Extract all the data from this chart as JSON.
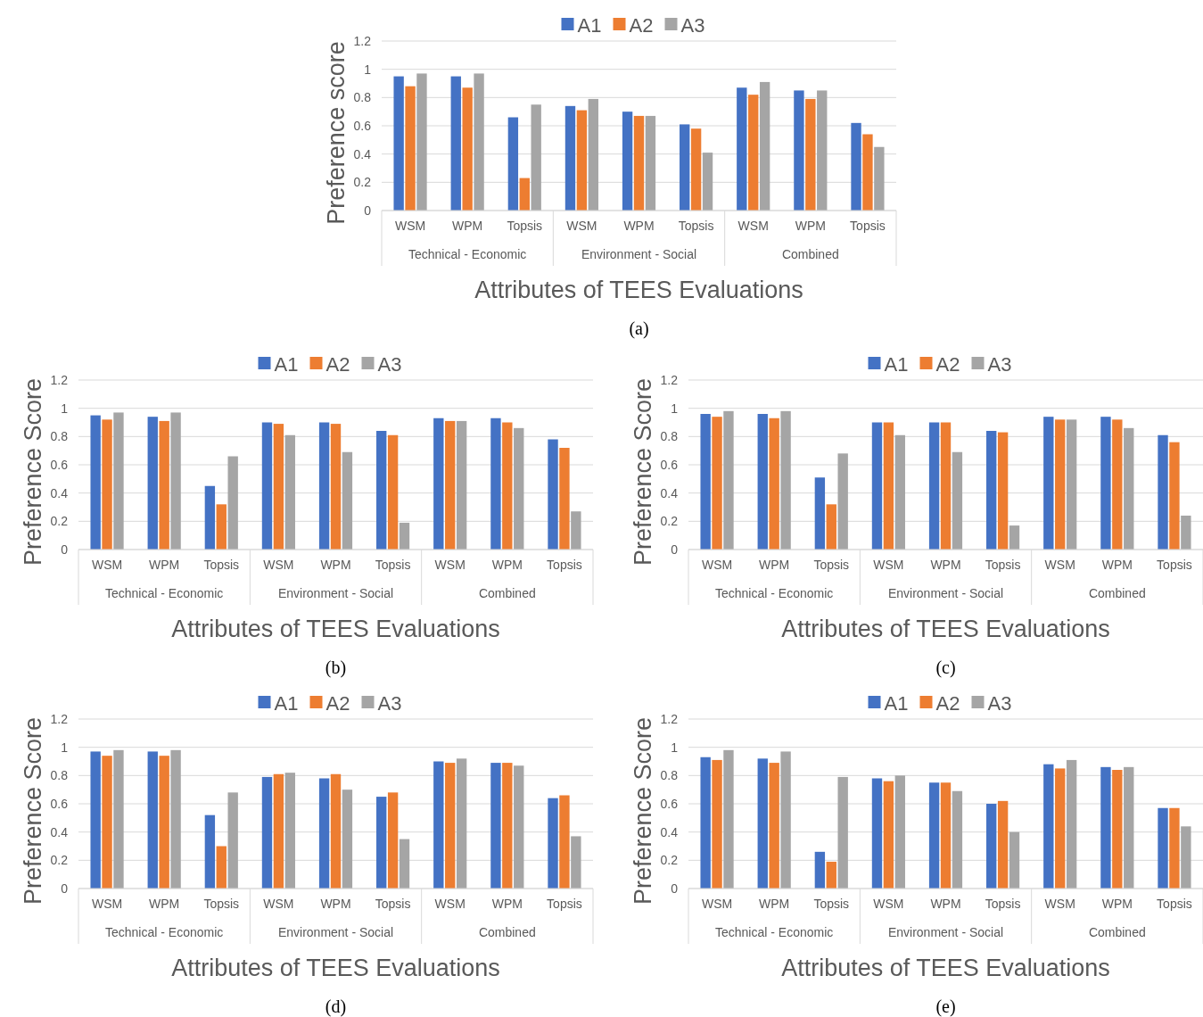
{
  "chart_data": [
    {
      "type": "bar",
      "ylabel": "Preference score",
      "xlabel": "Attributes of TEES Evaluations",
      "subtitle": "(a)",
      "categories": [
        "WSM",
        "WPM",
        "Topsis",
        "WSM",
        "WPM",
        "Topsis",
        "WSM",
        "WPM",
        "Topsis"
      ],
      "annotations": [
        "Technical - Economic",
        "Environment - Social",
        "Combined"
      ],
      "ylim": [
        0,
        1.2
      ],
      "yticks": [
        0,
        0.2,
        0.4,
        0.6,
        0.8,
        1,
        1.2
      ],
      "grid": "y",
      "legend": "top",
      "series": [
        {
          "name": "A1",
          "color": "#4472c4",
          "values": [
            0.95,
            0.95,
            0.66,
            0.74,
            0.7,
            0.61,
            0.87,
            0.85,
            0.62
          ]
        },
        {
          "name": "A2",
          "color": "#ed7d31",
          "values": [
            0.88,
            0.87,
            0.23,
            0.71,
            0.67,
            0.58,
            0.82,
            0.79,
            0.54
          ]
        },
        {
          "name": "A3",
          "color": "#a5a5a5",
          "values": [
            0.97,
            0.97,
            0.75,
            0.79,
            0.67,
            0.41,
            0.91,
            0.85,
            0.45
          ]
        }
      ]
    },
    {
      "type": "bar",
      "ylabel": "Preference Score",
      "xlabel": "Attributes of TEES Evaluations",
      "subtitle": "(b)",
      "categories": [
        "WSM",
        "WPM",
        "Topsis",
        "WSM",
        "WPM",
        "Topsis",
        "WSM",
        "WPM",
        "Topsis"
      ],
      "annotations": [
        "Technical - Economic",
        "Environment - Social",
        "Combined"
      ],
      "ylim": [
        0,
        1.2
      ],
      "yticks": [
        0,
        0.2,
        0.4,
        0.6,
        0.8,
        1,
        1.2
      ],
      "grid": "y",
      "legend": "top",
      "series": [
        {
          "name": "A1",
          "color": "#4472c4",
          "values": [
            0.95,
            0.94,
            0.45,
            0.9,
            0.9,
            0.84,
            0.93,
            0.93,
            0.78
          ]
        },
        {
          "name": "A2",
          "color": "#ed7d31",
          "values": [
            0.92,
            0.91,
            0.32,
            0.89,
            0.89,
            0.81,
            0.91,
            0.9,
            0.72
          ]
        },
        {
          "name": "A3",
          "color": "#a5a5a5",
          "values": [
            0.97,
            0.97,
            0.66,
            0.81,
            0.69,
            0.19,
            0.91,
            0.86,
            0.27
          ]
        }
      ]
    },
    {
      "type": "bar",
      "ylabel": "Preference Score",
      "xlabel": "Attributes of TEES Evaluations",
      "subtitle": "(c)",
      "categories": [
        "WSM",
        "WPM",
        "Topsis",
        "WSM",
        "WPM",
        "Topsis",
        "WSM",
        "WPM",
        "Topsis"
      ],
      "annotations": [
        "Technical - Economic",
        "Environment - Social",
        "Combined"
      ],
      "ylim": [
        0,
        1.2
      ],
      "yticks": [
        0,
        0.2,
        0.4,
        0.6,
        0.8,
        1,
        1.2
      ],
      "grid": "y",
      "legend": "top",
      "series": [
        {
          "name": "A1",
          "color": "#4472c4",
          "values": [
            0.96,
            0.96,
            0.51,
            0.9,
            0.9,
            0.84,
            0.94,
            0.94,
            0.81
          ]
        },
        {
          "name": "A2",
          "color": "#ed7d31",
          "values": [
            0.94,
            0.93,
            0.32,
            0.9,
            0.9,
            0.83,
            0.92,
            0.92,
            0.76
          ]
        },
        {
          "name": "A3",
          "color": "#a5a5a5",
          "values": [
            0.98,
            0.98,
            0.68,
            0.81,
            0.69,
            0.17,
            0.92,
            0.86,
            0.24
          ]
        }
      ]
    },
    {
      "type": "bar",
      "ylabel": "Preference Score",
      "xlabel": "Attributes of TEES Evaluations",
      "subtitle": "(d)",
      "categories": [
        "WSM",
        "WPM",
        "Topsis",
        "WSM",
        "WPM",
        "Topsis",
        "WSM",
        "WPM",
        "Topsis"
      ],
      "annotations": [
        "Technical - Economic",
        "Environment - Social",
        "Combined"
      ],
      "ylim": [
        0,
        1.2
      ],
      "yticks": [
        0,
        0.2,
        0.4,
        0.6,
        0.8,
        1,
        1.2
      ],
      "grid": "y",
      "legend": "top",
      "series": [
        {
          "name": "A1",
          "color": "#4472c4",
          "values": [
            0.97,
            0.97,
            0.52,
            0.79,
            0.78,
            0.65,
            0.9,
            0.89,
            0.64
          ]
        },
        {
          "name": "A2",
          "color": "#ed7d31",
          "values": [
            0.94,
            0.94,
            0.3,
            0.81,
            0.81,
            0.68,
            0.89,
            0.89,
            0.66
          ]
        },
        {
          "name": "A3",
          "color": "#a5a5a5",
          "values": [
            0.98,
            0.98,
            0.68,
            0.82,
            0.7,
            0.35,
            0.92,
            0.87,
            0.37
          ]
        }
      ]
    },
    {
      "type": "bar",
      "ylabel": "Preference Score",
      "xlabel": "Attributes of TEES Evaluations",
      "subtitle": "(e)",
      "categories": [
        "WSM",
        "WPM",
        "Topsis",
        "WSM",
        "WPM",
        "Topsis",
        "WSM",
        "WPM",
        "Topsis"
      ],
      "annotations": [
        "Technical - Economic",
        "Environment - Social",
        "Combined"
      ],
      "ylim": [
        0,
        1.2
      ],
      "yticks": [
        0,
        0.2,
        0.4,
        0.6,
        0.8,
        1,
        1.2
      ],
      "grid": "y",
      "legend": "top",
      "series": [
        {
          "name": "A1",
          "color": "#4472c4",
          "values": [
            0.93,
            0.92,
            0.26,
            0.78,
            0.75,
            0.6,
            0.88,
            0.86,
            0.57
          ]
        },
        {
          "name": "A2",
          "color": "#ed7d31",
          "values": [
            0.91,
            0.89,
            0.19,
            0.76,
            0.75,
            0.62,
            0.85,
            0.84,
            0.57
          ]
        },
        {
          "name": "A3",
          "color": "#a5a5a5",
          "values": [
            0.98,
            0.97,
            0.79,
            0.8,
            0.69,
            0.4,
            0.91,
            0.86,
            0.44
          ]
        }
      ]
    }
  ]
}
